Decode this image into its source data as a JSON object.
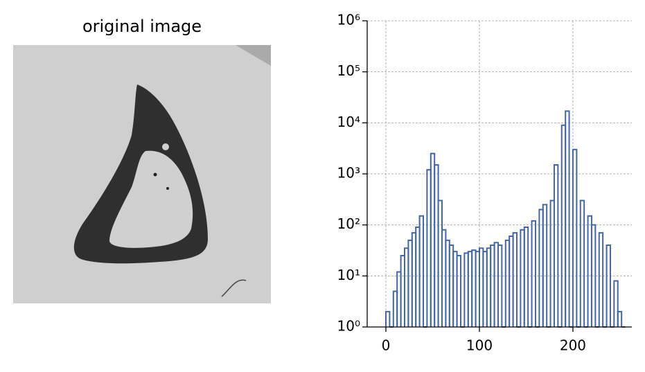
{
  "chart_data": [
    {
      "type": "image",
      "title": "original image"
    },
    {
      "type": "histogram",
      "color": "#4266a6",
      "bins": [
        0,
        4,
        8,
        12,
        16,
        20,
        24,
        28,
        32,
        36,
        40,
        44,
        48,
        52,
        56,
        60,
        64,
        68,
        72,
        76,
        80,
        84,
        88,
        92,
        96,
        100,
        104,
        108,
        112,
        116,
        120,
        124,
        128,
        132,
        136,
        140,
        144,
        148,
        152,
        156,
        160,
        164,
        168,
        172,
        176,
        180,
        184,
        188,
        192,
        196,
        200,
        204,
        208,
        212,
        216,
        220,
        224,
        228,
        232,
        236,
        240,
        244,
        248,
        252,
        256
      ],
      "values": [
        2,
        0,
        5,
        12,
        25,
        35,
        50,
        70,
        90,
        150,
        0,
        1200,
        2500,
        1500,
        300,
        80,
        50,
        40,
        30,
        25,
        0,
        28,
        30,
        32,
        30,
        35,
        30,
        35,
        40,
        45,
        40,
        0,
        50,
        60,
        70,
        0,
        80,
        90,
        0,
        120,
        0,
        200,
        250,
        0,
        300,
        1500,
        0,
        9000,
        17000,
        0,
        3000,
        0,
        300,
        0,
        150,
        100,
        0,
        70,
        0,
        40,
        0,
        8,
        2,
        0
      ],
      "xlim": [
        -20,
        263
      ],
      "xticks": [
        0,
        100,
        200
      ],
      "ylim": [
        1,
        1000000
      ],
      "yticks": [
        {
          "value": 1,
          "label": "10⁰"
        },
        {
          "value": 10,
          "label": "10¹"
        },
        {
          "value": 100,
          "label": "10²"
        },
        {
          "value": 1000,
          "label": "10³"
        },
        {
          "value": 10000,
          "label": "10⁴"
        },
        {
          "value": 100000,
          "label": "10⁵"
        },
        {
          "value": 1000000,
          "label": "10⁶"
        }
      ],
      "log_y": true,
      "grid": true
    }
  ]
}
